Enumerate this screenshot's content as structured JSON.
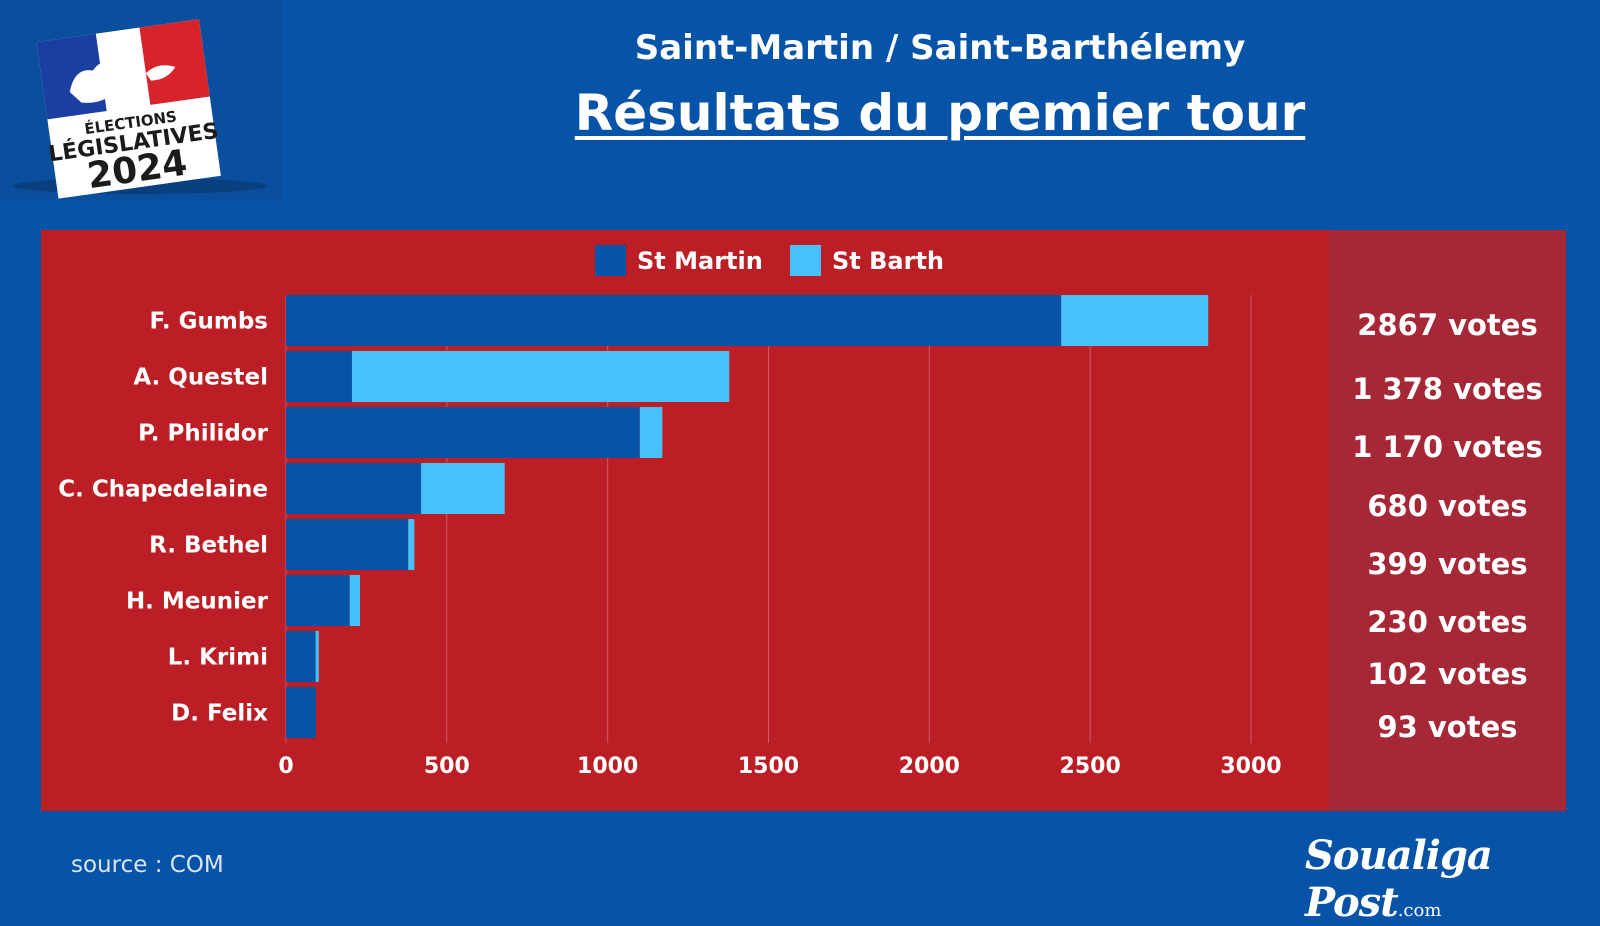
{
  "header": {
    "subtitle": "Saint-Martin / Saint-Barthélemy",
    "title": "Résultats du premier tour"
  },
  "logo": {
    "line1": "ÉLECTIONS",
    "line2": "LÉGISLATIVES",
    "line3": "2024"
  },
  "chart_data": {
    "type": "bar",
    "orientation": "horizontal",
    "stacked": true,
    "categories": [
      "F. Gumbs",
      "A. Questel",
      "P. Philidor",
      "C. Chapedelaine",
      "R. Bethel",
      "H. Meunier",
      "L. Krimi",
      "D. Felix"
    ],
    "series": [
      {
        "name": "St Martin",
        "values": [
          2410,
          205,
          1100,
          420,
          380,
          198,
          92,
          93
        ]
      },
      {
        "name": "St Barth",
        "values": [
          457,
          1173,
          70,
          260,
          19,
          32,
          10,
          0
        ]
      }
    ],
    "x_ticks": [
      "0",
      "500",
      "1000",
      "1500",
      "2000",
      "2500",
      "3000"
    ],
    "xlim": [
      0,
      3000
    ],
    "legend": "top",
    "grid": true,
    "colors": {
      "St Martin": "#0753a8",
      "St Barth": "#47c1fb"
    }
  },
  "totals": [
    "2867 votes",
    "1 378 votes",
    "1 170 votes",
    "680 votes",
    "399 votes",
    "230 votes",
    "102 votes",
    "93 votes"
  ],
  "footer": {
    "source": "source : COM",
    "brand": "Soualiga Post",
    "brand_domain": ".com"
  }
}
